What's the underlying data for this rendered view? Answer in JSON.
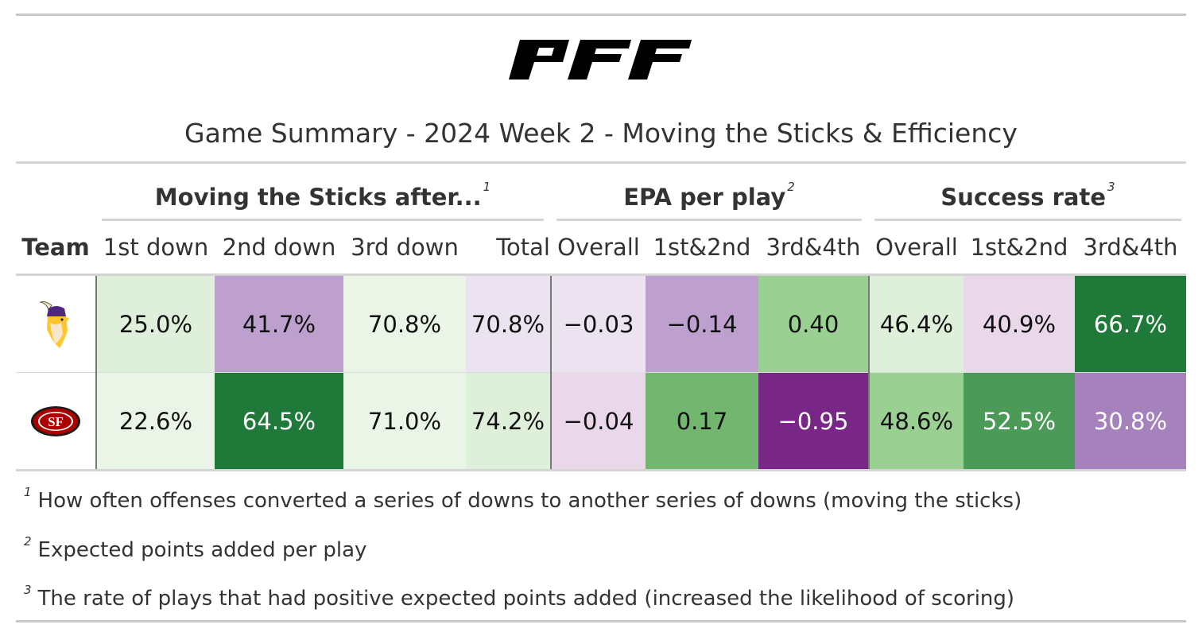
{
  "brand": {
    "logo_text": "PFF"
  },
  "title": "Game Summary - 2024 Week 2 - Moving the Sticks & Efficiency",
  "spanners": [
    {
      "label": "Moving the Sticks after...",
      "note": "1"
    },
    {
      "label": "EPA per play",
      "note": "2"
    },
    {
      "label": "Success rate",
      "note": "3"
    }
  ],
  "columns": [
    "Team",
    "1st down",
    "2nd down",
    "3rd down",
    "Total",
    "Overall",
    "1st&2nd",
    "3rd&4th",
    "Overall",
    "1st&2nd",
    "3rd&4th"
  ],
  "rows": [
    {
      "team_icon": "vikings-logo-icon",
      "values": [
        "25.0%",
        "41.7%",
        "70.8%",
        "70.8%",
        "−0.03",
        "−0.14",
        "0.40",
        "46.4%",
        "40.9%",
        "66.7%"
      ],
      "colors": [
        "#dff0da",
        "#bda0ce",
        "#eaf4e7",
        "#ebe3ef",
        "#ebe3ef",
        "#bda0ce",
        "#9bd093",
        "#dff0da",
        "#ead7ea",
        "#1f7a39"
      ]
    },
    {
      "team_icon": "49ers-logo-icon",
      "values": [
        "22.6%",
        "64.5%",
        "71.0%",
        "74.2%",
        "−0.04",
        "0.17",
        "−0.95",
        "48.6%",
        "52.5%",
        "30.8%"
      ],
      "colors": [
        "#eaf4e7",
        "#1f7a39",
        "#eaf4e7",
        "#dff0da",
        "#ead7ea",
        "#72b670",
        "#782786",
        "#9bd093",
        "#4b9a57",
        "#a682bd"
      ]
    }
  ],
  "footnotes": [
    {
      "mark": "1",
      "text": "How often offenses converted a series of downs to another series of downs (moving the sticks)"
    },
    {
      "mark": "2",
      "text": "Expected points added per play"
    },
    {
      "mark": "3",
      "text": "The rate of plays that had positive expected points added (increased the likelihood of scoring)"
    }
  ]
}
